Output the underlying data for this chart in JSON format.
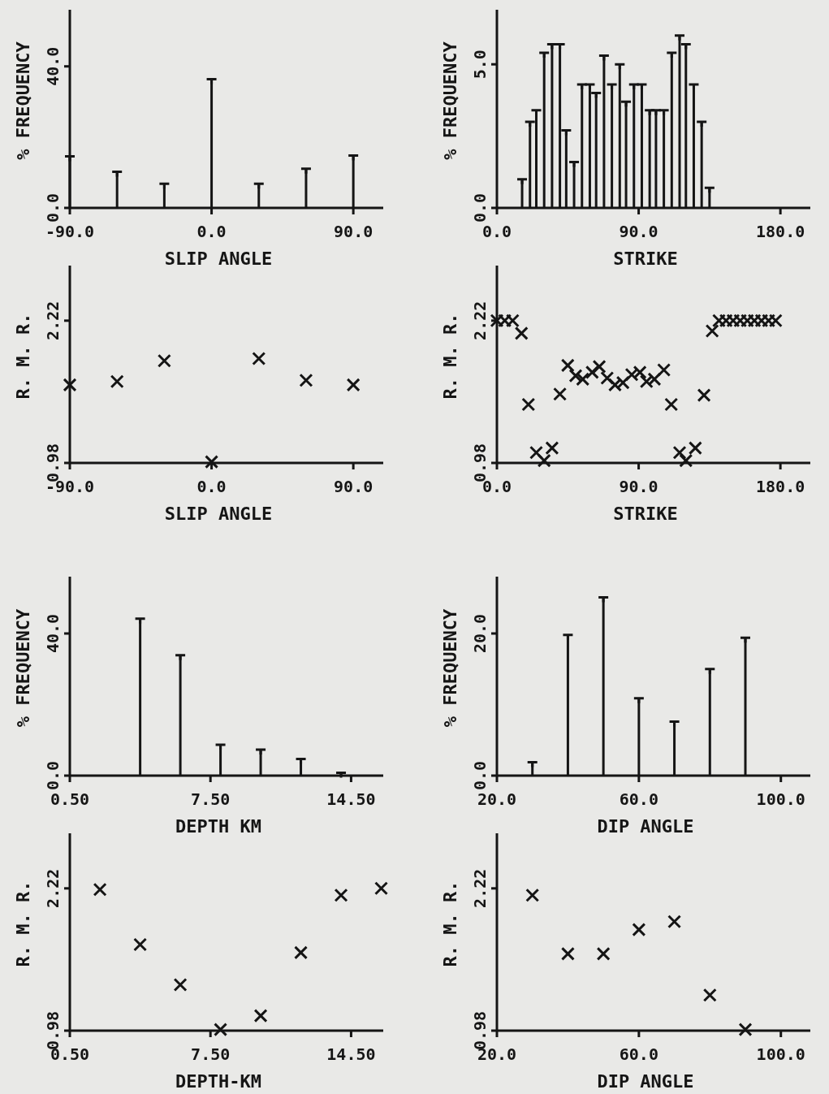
{
  "chart_data": [
    {
      "type": "lollipop",
      "xlabel": "SLIP ANGLE",
      "ylabel": "% FREQUENCY",
      "color": "#151515",
      "x": [
        -90,
        -60,
        -30,
        0,
        30,
        60,
        90
      ],
      "values": [
        14.6,
        10.2,
        6.8,
        36.4,
        6.8,
        11.1,
        14.8
      ],
      "xlim": [
        -90,
        109
      ],
      "ylim": [
        0,
        56
      ],
      "xticks": [
        {
          "value": -90,
          "label": "-90.0"
        },
        {
          "value": 0,
          "label": "0.0"
        },
        {
          "value": 90,
          "label": "90.0"
        }
      ],
      "yticks": [
        {
          "value": 0,
          "label": "0.0"
        },
        {
          "value": 40,
          "label": "40.0"
        }
      ]
    },
    {
      "type": "lollipop",
      "xlabel": "STRIKE",
      "ylabel": "% FREQUENCY",
      "color": "#151515",
      "x": [
        16,
        21,
        25,
        30,
        35,
        40,
        44,
        49,
        54,
        59,
        63,
        68,
        73,
        78,
        82,
        87,
        92,
        97,
        101,
        106,
        111,
        116,
        120,
        125,
        130,
        135
      ],
      "values": [
        1.0,
        3.0,
        3.4,
        5.4,
        5.7,
        5.7,
        2.7,
        1.6,
        4.3,
        4.3,
        4.0,
        5.3,
        4.3,
        5.0,
        3.7,
        4.3,
        4.3,
        3.4,
        3.4,
        3.4,
        5.4,
        6.0,
        5.7,
        4.3,
        3.0,
        0.7
      ],
      "xlim": [
        0,
        199
      ],
      "ylim": [
        0,
        6.9
      ],
      "xticks": [
        {
          "value": 0,
          "label": "0.0"
        },
        {
          "value": 90,
          "label": "90.0"
        },
        {
          "value": 180,
          "label": "180.0"
        }
      ],
      "yticks": [
        {
          "value": 0,
          "label": "0.0"
        },
        {
          "value": 5,
          "label": "5.0"
        }
      ]
    },
    {
      "type": "scatter",
      "marker": "cross",
      "xlabel": "SLIP ANGLE",
      "ylabel": "R. M. R.",
      "color": "#151515",
      "x": [
        -90,
        -60,
        -30,
        0,
        30,
        60,
        90
      ],
      "values": [
        1.66,
        1.69,
        1.87,
        0.99,
        1.89,
        1.7,
        1.66
      ],
      "xlim": [
        -90,
        109
      ],
      "ylim": [
        0.98,
        2.7
      ],
      "xticks": [
        {
          "value": -90,
          "label": "-90.0"
        },
        {
          "value": 0,
          "label": "0.0"
        },
        {
          "value": 90,
          "label": "90.0"
        }
      ],
      "yticks": [
        {
          "value": 0.98,
          "label": "0.98"
        },
        {
          "value": 2.22,
          "label": "2.22"
        }
      ]
    },
    {
      "type": "scatter",
      "marker": "cross",
      "xlabel": "STRIKE",
      "ylabel": "R. M. R.",
      "color": "#151515",
      "x": [
        0,
        5,
        10,
        15.6,
        20,
        25,
        30,
        35,
        40,
        45,
        50,
        54.5,
        60.5,
        65,
        70,
        75,
        80,
        85.6,
        90.8,
        95,
        100,
        106,
        110.7,
        116,
        120,
        126,
        131.5,
        136.7,
        141,
        145.5,
        150,
        154.5,
        159,
        163.5,
        168,
        172.5,
        177
      ],
      "values": [
        2.22,
        2.22,
        2.22,
        2.11,
        1.49,
        1.07,
        1.0,
        1.11,
        1.58,
        1.83,
        1.74,
        1.71,
        1.77,
        1.82,
        1.72,
        1.66,
        1.68,
        1.75,
        1.77,
        1.69,
        1.71,
        1.79,
        1.49,
        1.07,
        1.0,
        1.11,
        1.57,
        2.13,
        2.22,
        2.22,
        2.22,
        2.22,
        2.22,
        2.22,
        2.22,
        2.22,
        2.22
      ],
      "xlim": [
        0,
        199
      ],
      "ylim": [
        0.98,
        2.7
      ],
      "xticks": [
        {
          "value": 0,
          "label": "0.0"
        },
        {
          "value": 90,
          "label": "90.0"
        },
        {
          "value": 180,
          "label": "180.0"
        }
      ],
      "yticks": [
        {
          "value": 0.98,
          "label": "0.98"
        },
        {
          "value": 2.22,
          "label": "2.22"
        }
      ]
    },
    {
      "type": "lollipop",
      "xlabel": "DEPTH KM",
      "ylabel": "% FREQUENCY",
      "color": "#151515",
      "x": [
        4,
        6,
        8,
        10,
        12,
        14
      ],
      "values": [
        44.2,
        33.9,
        8.7,
        7.3,
        4.7,
        0.8
      ],
      "xlim": [
        0.5,
        16.1
      ],
      "ylim": [
        0,
        56
      ],
      "xticks": [
        {
          "value": 0.5,
          "label": "0.50"
        },
        {
          "value": 7.5,
          "label": "7.50"
        },
        {
          "value": 14.5,
          "label": "14.50"
        }
      ],
      "yticks": [
        {
          "value": 0,
          "label": "0.0"
        },
        {
          "value": 40,
          "label": "40.0"
        }
      ]
    },
    {
      "type": "lollipop",
      "xlabel": "DIP ANGLE",
      "ylabel": "% FREQUENCY",
      "color": "#151515",
      "x": [
        30,
        40,
        50,
        60,
        70,
        80,
        90
      ],
      "values": [
        1.9,
        19.8,
        25.1,
        10.9,
        7.6,
        15.0,
        19.4
      ],
      "xlim": [
        20,
        108.3
      ],
      "ylim": [
        0,
        28
      ],
      "xticks": [
        {
          "value": 20,
          "label": "20.0"
        },
        {
          "value": 60,
          "label": "60.0"
        },
        {
          "value": 100,
          "label": "100.0"
        }
      ],
      "yticks": [
        {
          "value": 0,
          "label": "0.0"
        },
        {
          "value": 20,
          "label": "20.0"
        }
      ]
    },
    {
      "type": "scatter",
      "marker": "cross",
      "xlabel": "DEPTH-KM",
      "ylabel": "R. M. R.",
      "color": "#151515",
      "x": [
        2,
        4,
        6,
        8,
        10,
        12,
        14,
        16
      ],
      "values": [
        2.21,
        1.73,
        1.38,
        0.99,
        1.11,
        1.66,
        2.16,
        2.22
      ],
      "xlim": [
        0.5,
        16.1
      ],
      "ylim": [
        0.98,
        2.7
      ],
      "xticks": [
        {
          "value": 0.5,
          "label": "0.50"
        },
        {
          "value": 7.5,
          "label": "7.50"
        },
        {
          "value": 14.5,
          "label": "14.50"
        }
      ],
      "yticks": [
        {
          "value": 0.98,
          "label": "0.98"
        },
        {
          "value": 2.22,
          "label": "2.22"
        }
      ]
    },
    {
      "type": "scatter",
      "marker": "cross",
      "xlabel": "DIP ANGLE",
      "ylabel": "R. M. R.",
      "color": "#151515",
      "x": [
        30,
        40,
        50,
        60,
        70,
        80,
        90
      ],
      "values": [
        2.16,
        1.65,
        1.65,
        1.86,
        1.93,
        1.29,
        0.99
      ],
      "xlim": [
        20,
        108.3
      ],
      "ylim": [
        0.98,
        2.7
      ],
      "xticks": [
        {
          "value": 20,
          "label": "20.0"
        },
        {
          "value": 60,
          "label": "60.0"
        },
        {
          "value": 100,
          "label": "100.0"
        }
      ],
      "yticks": [
        {
          "value": 0.98,
          "label": "0.98"
        },
        {
          "value": 2.22,
          "label": "2.22"
        }
      ]
    }
  ]
}
